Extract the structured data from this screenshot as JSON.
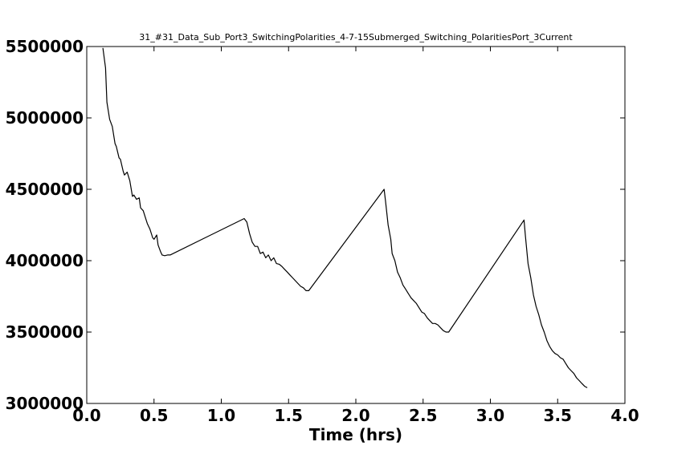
{
  "chart_data": {
    "type": "line",
    "title": "31_#31_Data_Sub_Port3_SwitchingPolarities_4-7-15Submerged_Switching_PolaritiesPort_3Current",
    "xlabel": "Time (hrs)",
    "ylabel": "",
    "xlim": [
      0.0,
      4.0
    ],
    "ylim": [
      3000000,
      5500000
    ],
    "xticks": [
      0.0,
      0.5,
      1.0,
      1.5,
      2.0,
      2.5,
      3.0,
      3.5,
      4.0
    ],
    "xtick_labels": [
      "0.0",
      "0.5",
      "1.0",
      "1.5",
      "2.0",
      "2.5",
      "3.0",
      "3.5",
      "4.0"
    ],
    "yticks": [
      3000000,
      3500000,
      4000000,
      4500000,
      5000000,
      5500000
    ],
    "ytick_labels": [
      "3000000",
      "3500000",
      "4000000",
      "4500000",
      "5000000",
      "5500000"
    ],
    "grid": false,
    "legend": "none",
    "series": [
      {
        "color": "#000000",
        "x": [
          0.12,
          0.14,
          0.15,
          0.17,
          0.19,
          0.21,
          0.22,
          0.24,
          0.25,
          0.27,
          0.28,
          0.3,
          0.32,
          0.34,
          0.35,
          0.37,
          0.39,
          0.4,
          0.42,
          0.44,
          0.45,
          0.47,
          0.49,
          0.5,
          0.52,
          0.53,
          0.55,
          0.56,
          0.58,
          0.6,
          0.62,
          1.17,
          1.19,
          1.21,
          1.23,
          1.25,
          1.27,
          1.29,
          1.31,
          1.33,
          1.35,
          1.37,
          1.39,
          1.41,
          1.43,
          1.45,
          1.47,
          1.49,
          1.51,
          1.53,
          1.55,
          1.57,
          1.59,
          1.61,
          1.63,
          1.65,
          2.21,
          2.22,
          2.24,
          2.26,
          2.27,
          2.29,
          2.31,
          2.33,
          2.35,
          2.37,
          2.39,
          2.41,
          2.43,
          2.45,
          2.47,
          2.49,
          2.51,
          2.53,
          2.55,
          2.57,
          2.59,
          2.61,
          2.63,
          2.65,
          2.67,
          2.69,
          3.25,
          3.26,
          3.28,
          3.3,
          3.32,
          3.34,
          3.36,
          3.38,
          3.4,
          3.42,
          3.44,
          3.46,
          3.48,
          3.5,
          3.52,
          3.54,
          3.56,
          3.58,
          3.6,
          3.62,
          3.64,
          3.66,
          3.68,
          3.7,
          3.72
        ],
        "y": [
          5490000,
          5350000,
          5110000,
          4990000,
          4940000,
          4820000,
          4800000,
          4720000,
          4710000,
          4630000,
          4600000,
          4620000,
          4560000,
          4450000,
          4460000,
          4430000,
          4440000,
          4370000,
          4350000,
          4290000,
          4260000,
          4220000,
          4160000,
          4150000,
          4180000,
          4110000,
          4060000,
          4040000,
          4035000,
          4040000,
          4040000,
          4295000,
          4270000,
          4190000,
          4130000,
          4100000,
          4100000,
          4050000,
          4060000,
          4020000,
          4040000,
          4000000,
          4020000,
          3980000,
          3975000,
          3960000,
          3940000,
          3920000,
          3900000,
          3880000,
          3860000,
          3840000,
          3820000,
          3810000,
          3790000,
          3790000,
          4500000,
          4420000,
          4250000,
          4150000,
          4050000,
          4000000,
          3920000,
          3880000,
          3830000,
          3800000,
          3770000,
          3740000,
          3720000,
          3700000,
          3670000,
          3640000,
          3630000,
          3600000,
          3580000,
          3560000,
          3560000,
          3550000,
          3530000,
          3510000,
          3500000,
          3500000,
          4285000,
          4180000,
          3980000,
          3880000,
          3760000,
          3680000,
          3620000,
          3550000,
          3500000,
          3440000,
          3400000,
          3370000,
          3350000,
          3340000,
          3320000,
          3310000,
          3280000,
          3250000,
          3230000,
          3210000,
          3180000,
          3160000,
          3140000,
          3120000,
          3110000
        ]
      }
    ]
  }
}
